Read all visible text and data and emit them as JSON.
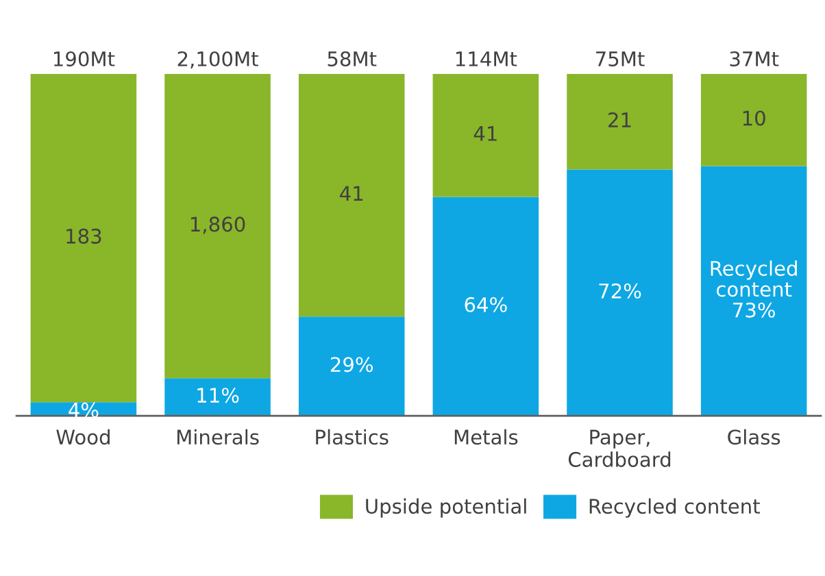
{
  "chart_data": {
    "type": "bar",
    "stacked": true,
    "categories": [
      "Wood",
      "Minerals",
      "Plastics",
      "Metals",
      "Paper,\nCardboard",
      "Glass"
    ],
    "series": [
      {
        "name": "Recycled content",
        "color": "#0ea7e3",
        "values": [
          4,
          11,
          29,
          64,
          72,
          73
        ],
        "value_labels": [
          "4%",
          "11%",
          "29%",
          "64%",
          "72%",
          "Recycled\ncontent\n73%"
        ]
      },
      {
        "name": "Upside potential",
        "color": "#8ab62a",
        "values": [
          96,
          89,
          71,
          36,
          28,
          27
        ]
      }
    ],
    "annotations": [
      "183",
      "1,860",
      "41",
      "41",
      "21",
      "10",
      {
        "text": "190Mt",
        "x": "Wood",
        "y": 100
      },
      {
        "text": "2,100Mt",
        "x": "Minerals",
        "y": 100
      },
      {
        "text": "58Mt",
        "x": "Plastics",
        "y": 100
      },
      {
        "text": "114Mt",
        "x": "Metals",
        "y": 100
      },
      {
        "text": "75Mt",
        "x": "Paper,\nCardboard",
        "y": 100
      },
      {
        "text": "37Mt",
        "x": "Glass",
        "y": 100
      }
    ],
    "ylim": [
      0,
      100
    ],
    "tick_labels": "x",
    "legend": "bottom"
  }
}
